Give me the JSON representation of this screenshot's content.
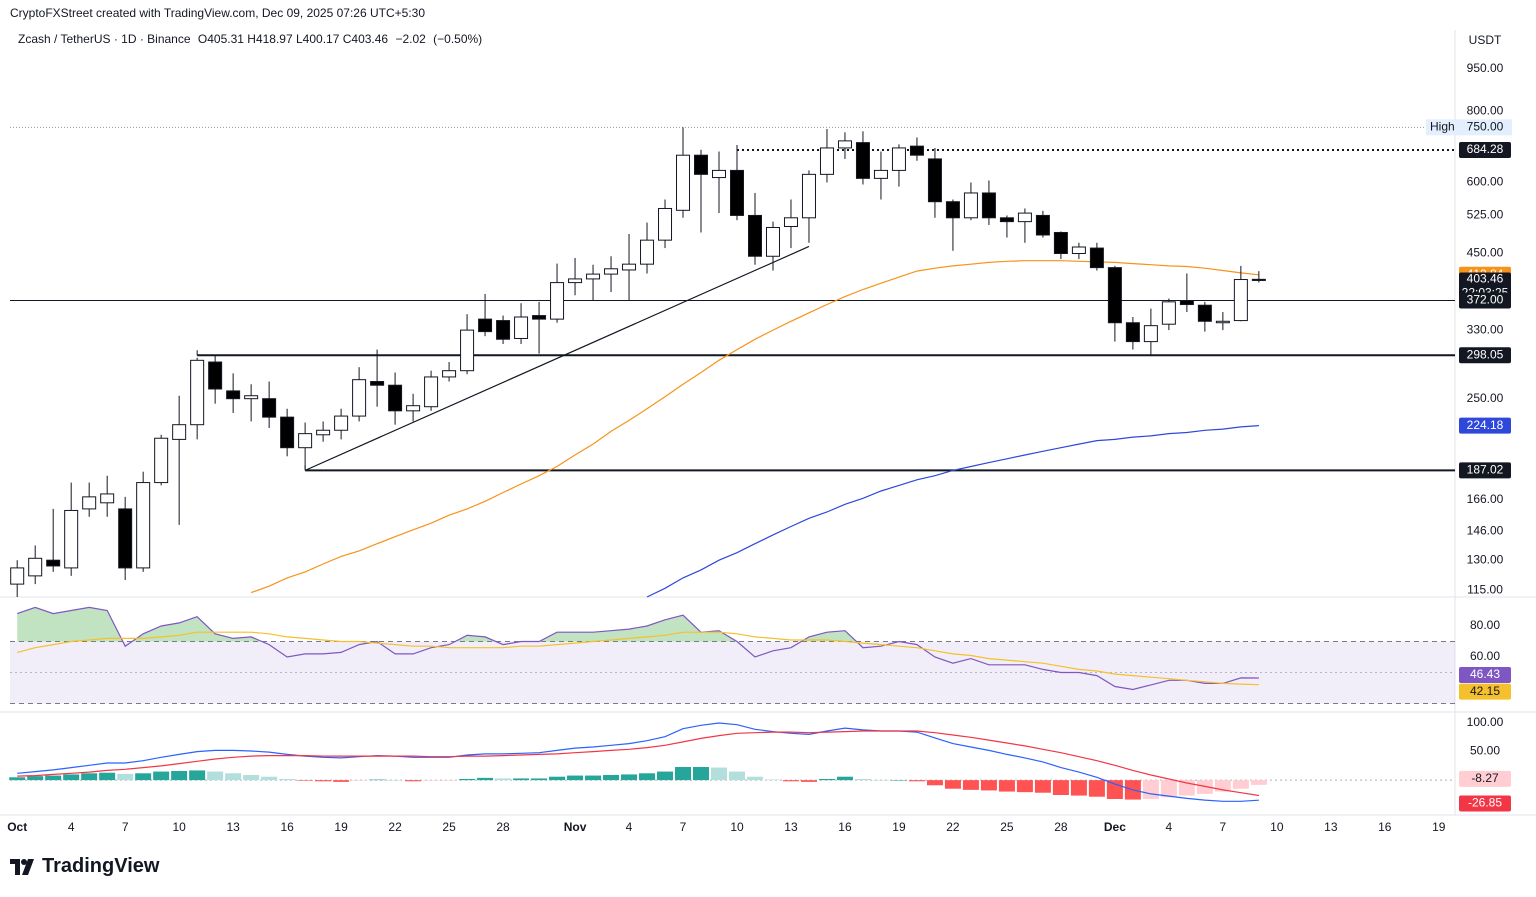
{
  "header": {
    "credit": "CryptoFXStreet created with TradingView.com, Dec 09, 2025 07:26 UTC+5:30",
    "symbol": "Zcash / TetherUS · 1D · Binance",
    "quote": [
      {
        "label": "O",
        "value": 405.31
      },
      {
        "label": "H",
        "value": 418.97
      },
      {
        "label": "L",
        "value": 400.17
      },
      {
        "label": "C",
        "value": 403.46
      }
    ],
    "change": {
      "value": -2.02,
      "label": "−2.02"
    },
    "change_pct": {
      "value": -0.5,
      "label": "(−0.50%)"
    }
  },
  "footer": {
    "logo": "TradingView"
  },
  "chart_data": [
    {
      "type": "candlestick",
      "currency": "USDT",
      "yscale": "log",
      "ylim": [
        112,
        1090
      ],
      "xlim": [
        -0.4,
        79.9
      ],
      "yticks": [
        {
          "value": 950,
          "label": "950.00"
        },
        {
          "value": 800,
          "label": "800.00"
        },
        {
          "value": 600,
          "label": "600.00"
        },
        {
          "value": 525,
          "label": "525.00"
        },
        {
          "value": 450,
          "label": "450.00"
        },
        {
          "value": 330,
          "label": "330.00"
        },
        {
          "value": 250,
          "label": "250.00"
        },
        {
          "value": 166,
          "label": "166.00"
        },
        {
          "value": 146,
          "label": "146.00"
        },
        {
          "value": 130,
          "label": "130.00"
        },
        {
          "value": 115,
          "label": "115.00"
        }
      ],
      "xticks": [
        {
          "value": 0,
          "label": "Oct"
        },
        {
          "value": 3,
          "label": "4"
        },
        {
          "value": 6,
          "label": "7"
        },
        {
          "value": 9,
          "label": "10"
        },
        {
          "value": 12,
          "label": "13"
        },
        {
          "value": 15,
          "label": "16"
        },
        {
          "value": 18,
          "label": "19"
        },
        {
          "value": 21,
          "label": "22"
        },
        {
          "value": 24,
          "label": "25"
        },
        {
          "value": 27,
          "label": "28"
        },
        {
          "value": 31,
          "label": "Nov"
        },
        {
          "value": 34,
          "label": "4"
        },
        {
          "value": 37,
          "label": "7"
        },
        {
          "value": 40,
          "label": "10"
        },
        {
          "value": 43,
          "label": "13"
        },
        {
          "value": 46,
          "label": "16"
        },
        {
          "value": 49,
          "label": "19"
        },
        {
          "value": 52,
          "label": "22"
        },
        {
          "value": 55,
          "label": "25"
        },
        {
          "value": 58,
          "label": "28"
        },
        {
          "value": 61,
          "label": "Dec"
        },
        {
          "value": 64,
          "label": "4"
        },
        {
          "value": 67,
          "label": "7"
        },
        {
          "value": 70,
          "label": "10"
        },
        {
          "value": 73,
          "label": "13"
        },
        {
          "value": 76,
          "label": "16"
        },
        {
          "value": 79,
          "label": "19"
        }
      ],
      "ohlc": [
        [
          118,
          130,
          112,
          126
        ],
        [
          122,
          138,
          118,
          131
        ],
        [
          130,
          160,
          124,
          127
        ],
        [
          126,
          178,
          122,
          159
        ],
        [
          160,
          178,
          155,
          168
        ],
        [
          164,
          183,
          155,
          170
        ],
        [
          160,
          168,
          120,
          126
        ],
        [
          126,
          186,
          124,
          178
        ],
        [
          178,
          216,
          176,
          213
        ],
        [
          212,
          253,
          150,
          225
        ],
        [
          225,
          295,
          212,
          292
        ],
        [
          290,
          298,
          245,
          260
        ],
        [
          258,
          277,
          236,
          250
        ],
        [
          250,
          265,
          228,
          253
        ],
        [
          250,
          268,
          222,
          232
        ],
        [
          232,
          240,
          198,
          205
        ],
        [
          205,
          227,
          188,
          217
        ],
        [
          216,
          228,
          210,
          220
        ],
        [
          220,
          240,
          212,
          233
        ],
        [
          233,
          284,
          228,
          270
        ],
        [
          268,
          305,
          242,
          264
        ],
        [
          264,
          278,
          225,
          238
        ],
        [
          238,
          255,
          228,
          243
        ],
        [
          242,
          280,
          238,
          273
        ],
        [
          273,
          290,
          268,
          280
        ],
        [
          280,
          352,
          276,
          330
        ],
        [
          345,
          382,
          322,
          328
        ],
        [
          343,
          350,
          312,
          318
        ],
        [
          319,
          368,
          312,
          348
        ],
        [
          350,
          370,
          300,
          345
        ],
        [
          345,
          432,
          340,
          400
        ],
        [
          400,
          442,
          380,
          406
        ],
        [
          406,
          430,
          372,
          414
        ],
        [
          414,
          445,
          385,
          423
        ],
        [
          421,
          487,
          372,
          431
        ],
        [
          431,
          510,
          415,
          475
        ],
        [
          475,
          560,
          460,
          540
        ],
        [
          536,
          750,
          520,
          670
        ],
        [
          670,
          685,
          490,
          620
        ],
        [
          612,
          680,
          530,
          630
        ],
        [
          630,
          684,
          515,
          525
        ],
        [
          525,
          575,
          430,
          445
        ],
        [
          445,
          512,
          420,
          500
        ],
        [
          502,
          560,
          460,
          520
        ],
        [
          520,
          630,
          470,
          620
        ],
        [
          620,
          745,
          600,
          690
        ],
        [
          690,
          735,
          660,
          710
        ],
        [
          705,
          738,
          595,
          610
        ],
        [
          610,
          680,
          560,
          630
        ],
        [
          630,
          700,
          590,
          690
        ],
        [
          695,
          720,
          655,
          670
        ],
        [
          660,
          690,
          520,
          555
        ],
        [
          555,
          560,
          455,
          520
        ],
        [
          520,
          600,
          515,
          575
        ],
        [
          575,
          605,
          505,
          520
        ],
        [
          520,
          525,
          480,
          512
        ],
        [
          512,
          540,
          470,
          530
        ],
        [
          525,
          535,
          480,
          485
        ],
        [
          490,
          492,
          440,
          450
        ],
        [
          450,
          470,
          440,
          462
        ],
        [
          460,
          470,
          420,
          425
        ],
        [
          425,
          428,
          315,
          340
        ],
        [
          340,
          348,
          305,
          315
        ],
        [
          315,
          360,
          298,
          336
        ],
        [
          338,
          375,
          330,
          370
        ],
        [
          372,
          415,
          355,
          366
        ],
        [
          365,
          370,
          328,
          342
        ],
        [
          340,
          355,
          330,
          342
        ],
        [
          343,
          428,
          342,
          405
        ],
        [
          405.31,
          418.97,
          400.17,
          403.46
        ]
      ],
      "series": [
        {
          "color": "#f7931a",
          "values": [
            null,
            null,
            null,
            null,
            null,
            null,
            null,
            null,
            null,
            null,
            null,
            null,
            null,
            114,
            117,
            121,
            124,
            128,
            132,
            135,
            139,
            143,
            147,
            151,
            156,
            160,
            165,
            171,
            177,
            183,
            190,
            199,
            208,
            219,
            229,
            240,
            252,
            265,
            278,
            292,
            305,
            318,
            330,
            342,
            354,
            366,
            378,
            389,
            399,
            409,
            419,
            424,
            428,
            431,
            434,
            436,
            437,
            437,
            437,
            436,
            435,
            434,
            432,
            430,
            428,
            427,
            424,
            420,
            416,
            412.84
          ]
        },
        {
          "color": "#2e48d9",
          "values": [
            null,
            null,
            null,
            null,
            null,
            null,
            null,
            null,
            null,
            null,
            null,
            null,
            null,
            null,
            null,
            null,
            null,
            null,
            null,
            null,
            null,
            null,
            null,
            null,
            null,
            null,
            null,
            null,
            null,
            null,
            null,
            null,
            null,
            null,
            null,
            112,
            116,
            121,
            125,
            130,
            134,
            139,
            144,
            149,
            154,
            158,
            163,
            167,
            172,
            176,
            180,
            183,
            187,
            190,
            193,
            196,
            199,
            202,
            205,
            208,
            211,
            212,
            214,
            215,
            217,
            218,
            220,
            221,
            223,
            224.18
          ]
        }
      ],
      "high": {
        "name": "High",
        "value": 750,
        "label": "750.00"
      },
      "levels": [
        {
          "value": 684.28,
          "style": "dotted"
        },
        {
          "value": 372,
          "label": "372.00",
          "style": "solid"
        },
        {
          "value": 298.05,
          "style": "solid"
        },
        {
          "value": 187.02,
          "style": "solid"
        }
      ],
      "trendline": {
        "x": [
          16,
          44
        ],
        "y": [
          187.02,
          463
        ]
      },
      "countdown": "22:03:25"
    },
    {
      "type": "line",
      "ylim": [
        25.8,
        96.8
      ],
      "yticks": [
        {
          "value": 80,
          "label": "80.00"
        },
        {
          "value": 60,
          "label": "60.00"
        }
      ],
      "bands": [
        70,
        50,
        30
      ],
      "overbought_fill": "#4caf50",
      "series": [
        {
          "color": "#7e57c2",
          "values": [
            88,
            92,
            88,
            90,
            92,
            90,
            67,
            75,
            80,
            82,
            86,
            75,
            72,
            73,
            68,
            60,
            62,
            62,
            63,
            68,
            70,
            62,
            62,
            66,
            68,
            74,
            73,
            68,
            70,
            70,
            76,
            76,
            76,
            77,
            78,
            80,
            84,
            87,
            76,
            77,
            70,
            60,
            64,
            66,
            73,
            76,
            77,
            66,
            67,
            70,
            68,
            60,
            56,
            59,
            55,
            55,
            55,
            52,
            50,
            50,
            48,
            41,
            39,
            42,
            45,
            45,
            43,
            43,
            46.5,
            46.43
          ]
        },
        {
          "color": "#f5c02d",
          "values": [
            63,
            66,
            68,
            70,
            71,
            72,
            72,
            72,
            73,
            74,
            76,
            76,
            76,
            76,
            75,
            73,
            72,
            71,
            70,
            70,
            69,
            68,
            67,
            67,
            66,
            66,
            66,
            66,
            67,
            67,
            68,
            69,
            70,
            71,
            72,
            73,
            74,
            76,
            76,
            76,
            75,
            73,
            72,
            71,
            71,
            71,
            70,
            69,
            68,
            67,
            66,
            64,
            62,
            61,
            59,
            58,
            57,
            56,
            54,
            52,
            51,
            49,
            48,
            47,
            46,
            45,
            44,
            43,
            42.5,
            42.15
          ]
        }
      ]
    },
    {
      "type": "line",
      "ylim": [
        -61,
        114
      ],
      "yticks": [
        {
          "value": 100,
          "label": "100.00"
        },
        {
          "value": 50,
          "label": "50.00"
        }
      ],
      "series": [
        {
          "type": "bar",
          "colors": [
            "#26a69a",
            "#b2dfdb",
            "#ff5252",
            "#ffcdd2"
          ],
          "values": [
            5,
            7,
            8,
            10,
            12,
            13,
            11,
            12,
            15,
            16,
            17,
            15,
            12,
            9,
            6,
            2,
            -1,
            -2,
            -3,
            -1,
            1,
            0,
            -2,
            -1,
            -1,
            2,
            4,
            3,
            3,
            3,
            6,
            8,
            8,
            9,
            10,
            12,
            15,
            23,
            23,
            22,
            15,
            6,
            1,
            -2,
            -3,
            2,
            6,
            2,
            0,
            0,
            -2,
            -9,
            -15,
            -17,
            -18,
            -20,
            -21,
            -22,
            -26,
            -27,
            -29,
            -33,
            -34,
            -33,
            -30,
            -27,
            -24,
            -20,
            -15,
            -8.27
          ]
        },
        {
          "color": "#2962ff",
          "values": [
            12,
            15,
            18,
            22,
            26,
            30,
            30,
            34,
            40,
            45,
            50,
            52,
            52,
            51,
            49,
            45,
            42,
            40,
            39,
            41,
            43,
            42,
            40,
            40,
            40,
            44,
            46,
            46,
            47,
            48,
            52,
            56,
            58,
            61,
            64,
            69,
            76,
            90,
            96,
            100,
            97,
            89,
            85,
            82,
            80,
            86,
            91,
            88,
            86,
            86,
            84,
            74,
            64,
            58,
            52,
            45,
            39,
            32,
            22,
            14,
            5,
            -7,
            -17,
            -24,
            -28,
            -32,
            -35,
            -37,
            -37,
            -35.12
          ]
        },
        {
          "color": "#f23645",
          "values": [
            7,
            8,
            10,
            12,
            14,
            17,
            19,
            22,
            25,
            29,
            33,
            37,
            40,
            42,
            43,
            43,
            43,
            42,
            42,
            42,
            42,
            42,
            42,
            41,
            41,
            42,
            42,
            43,
            44,
            45,
            46,
            48,
            50,
            52,
            54,
            57,
            61,
            67,
            73,
            78,
            82,
            83,
            84,
            84,
            83,
            84,
            85,
            86,
            86,
            86,
            86,
            83,
            79,
            75,
            70,
            65,
            60,
            54,
            48,
            41,
            34,
            26,
            17,
            9,
            2,
            -5,
            -11,
            -17,
            -22,
            -26.85
          ]
        }
      ]
    }
  ]
}
